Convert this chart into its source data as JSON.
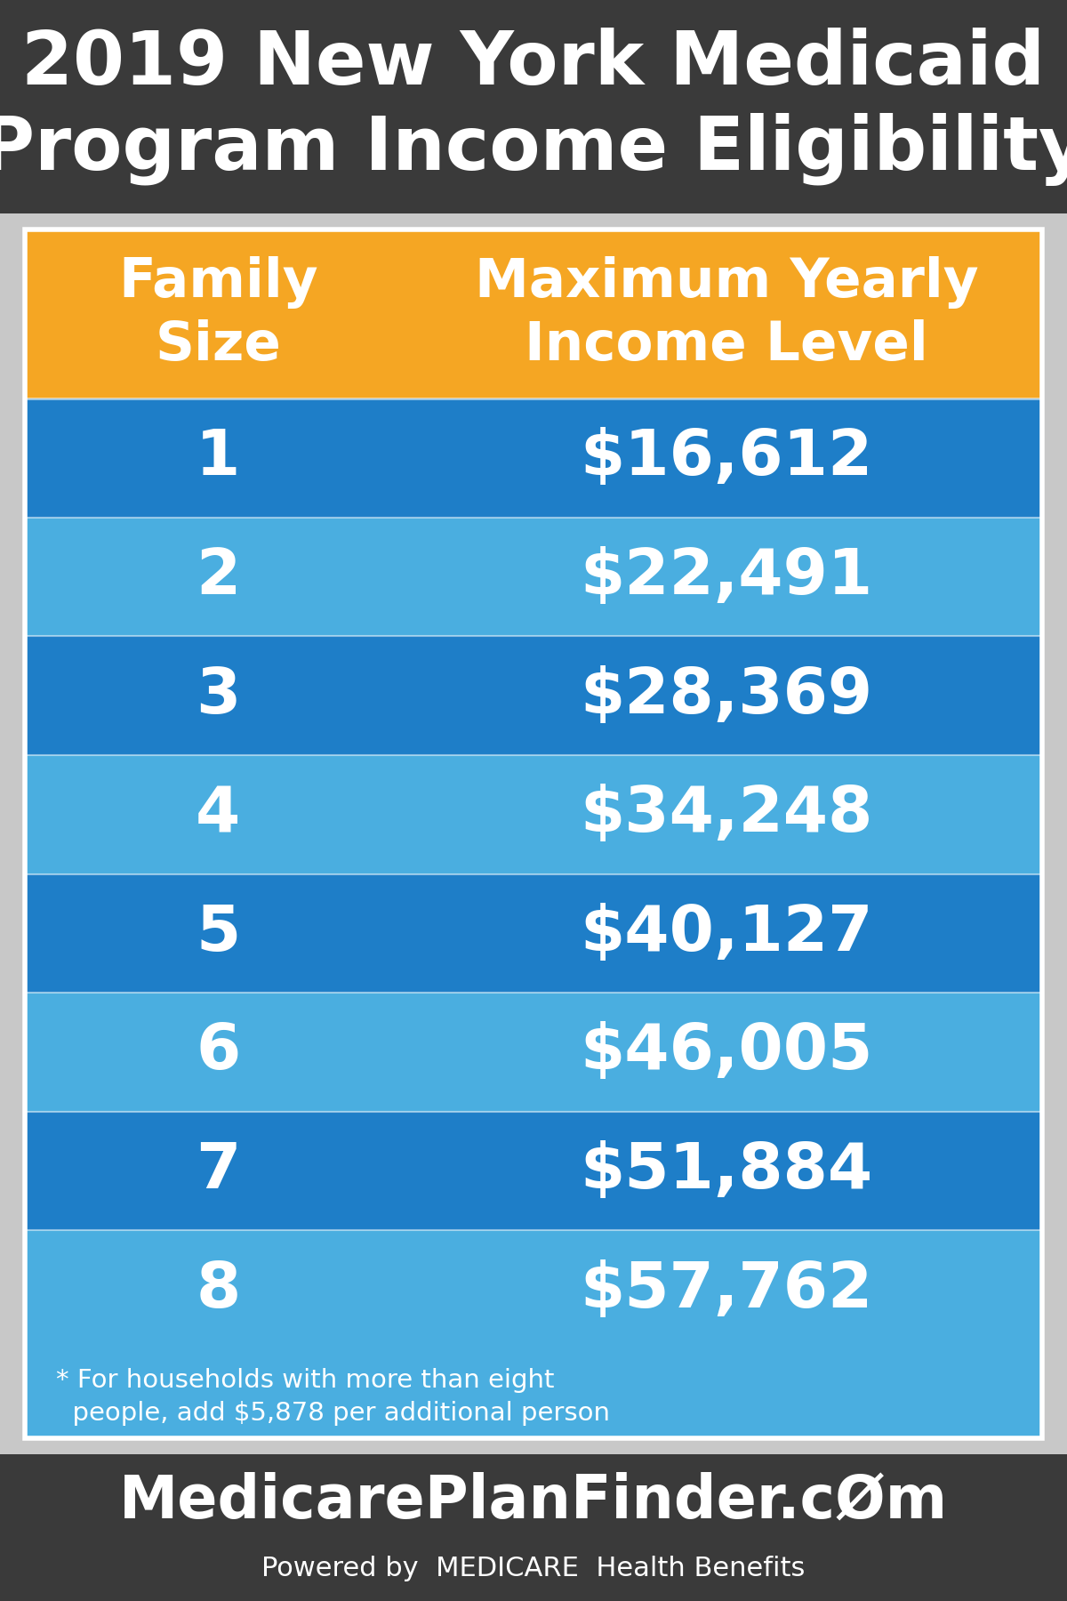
{
  "title_line1": "2019 New York Medicaid",
  "title_line2": "Program Income Eligibility",
  "title_bg_color": "#3a3a3a",
  "title_text_color": "#ffffff",
  "header_col1": "Family\nSize",
  "header_col2": "Maximum Yearly\nIncome Level",
  "header_bg_color": "#f5a623",
  "header_text_color": "#ffffff",
  "rows": [
    {
      "size": "1",
      "income": "$16,612"
    },
    {
      "size": "2",
      "income": "$22,491"
    },
    {
      "size": "3",
      "income": "$28,369"
    },
    {
      "size": "4",
      "income": "$34,248"
    },
    {
      "size": "5",
      "income": "$40,127"
    },
    {
      "size": "6",
      "income": "$46,005"
    },
    {
      "size": "7",
      "income": "$51,884"
    },
    {
      "size": "8",
      "income": "$57,762"
    }
  ],
  "row_dark_color": "#1e7ec8",
  "row_light_color": "#4aaee0",
  "row_text_color": "#ffffff",
  "footnote_line1": "* For households with more than eight",
  "footnote_line2": "  people, add $5,878 per additional person",
  "footnote_color": "#ffffff",
  "footer_bg_color": "#3a3a3a",
  "footer_main_text": "MedicarePlanFinder.cØm",
  "footer_subtext_normal": "Powered by ",
  "footer_subtext_bold": "MEDICARE",
  "footer_subtext_end": " Health Benefits",
  "footer_text_color": "#ffffff",
  "bg_color": "#c8c8c8",
  "table_bg_color": "#c8c8c8"
}
